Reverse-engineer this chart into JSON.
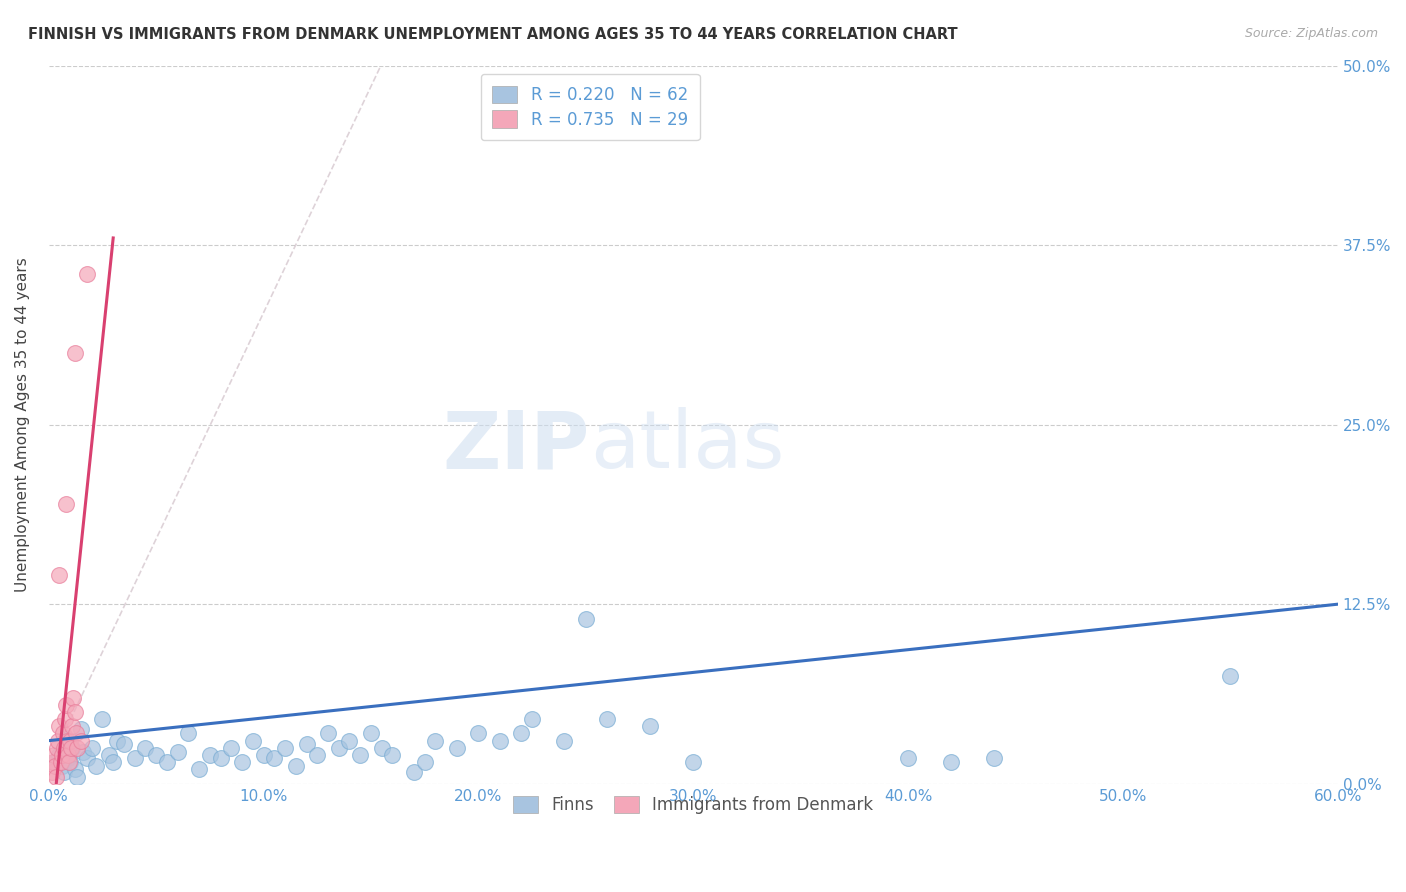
{
  "title": "FINNISH VS IMMIGRANTS FROM DENMARK UNEMPLOYMENT AMONG AGES 35 TO 44 YEARS CORRELATION CHART",
  "source": "Source: ZipAtlas.com",
  "ylabel": "Unemployment Among Ages 35 to 44 years",
  "xlabel_vals": [
    0,
    10,
    20,
    30,
    40,
    50,
    60
  ],
  "ylabel_vals": [
    0,
    12.5,
    25,
    37.5,
    50
  ],
  "xlim": [
    0,
    60
  ],
  "ylim": [
    0,
    50
  ],
  "watermark_zip": "ZIP",
  "watermark_atlas": "atlas",
  "finn_color": "#a8c4e0",
  "finn_edge_color": "#7aadd4",
  "dk_color": "#f4a7b9",
  "dk_edge_color": "#e87d9a",
  "finn_line_color": "#3a6fbf",
  "dk_line_color": "#d94070",
  "dash_line_color": "#d0c0c8",
  "tick_color": "#5b9bd5",
  "legend_label_color": "#5b9bd5",
  "finn_line": [
    [
      0,
      3.0
    ],
    [
      60,
      12.5
    ]
  ],
  "dk_line": [
    [
      0,
      -5.0
    ],
    [
      3.0,
      38.0
    ]
  ],
  "dash_line": [
    [
      -2,
      -5
    ],
    [
      18,
      58
    ]
  ],
  "finn_scatter": [
    [
      0.3,
      1.5
    ],
    [
      0.5,
      2.0
    ],
    [
      0.6,
      1.2
    ],
    [
      0.7,
      0.8
    ],
    [
      0.8,
      3.2
    ],
    [
      0.9,
      1.8
    ],
    [
      1.0,
      1.5
    ],
    [
      1.1,
      2.5
    ],
    [
      1.2,
      1.0
    ],
    [
      1.3,
      0.5
    ],
    [
      1.5,
      3.8
    ],
    [
      1.6,
      2.2
    ],
    [
      1.8,
      1.8
    ],
    [
      2.0,
      2.5
    ],
    [
      2.2,
      1.2
    ],
    [
      2.5,
      4.5
    ],
    [
      2.8,
      2.0
    ],
    [
      3.0,
      1.5
    ],
    [
      3.2,
      3.0
    ],
    [
      3.5,
      2.8
    ],
    [
      4.0,
      1.8
    ],
    [
      4.5,
      2.5
    ],
    [
      5.0,
      2.0
    ],
    [
      5.5,
      1.5
    ],
    [
      6.0,
      2.2
    ],
    [
      6.5,
      3.5
    ],
    [
      7.0,
      1.0
    ],
    [
      7.5,
      2.0
    ],
    [
      8.0,
      1.8
    ],
    [
      8.5,
      2.5
    ],
    [
      9.0,
      1.5
    ],
    [
      9.5,
      3.0
    ],
    [
      10.0,
      2.0
    ],
    [
      10.5,
      1.8
    ],
    [
      11.0,
      2.5
    ],
    [
      11.5,
      1.2
    ],
    [
      12.0,
      2.8
    ],
    [
      12.5,
      2.0
    ],
    [
      13.0,
      3.5
    ],
    [
      13.5,
      2.5
    ],
    [
      14.0,
      3.0
    ],
    [
      14.5,
      2.0
    ],
    [
      15.0,
      3.5
    ],
    [
      15.5,
      2.5
    ],
    [
      16.0,
      2.0
    ],
    [
      17.0,
      0.8
    ],
    [
      17.5,
      1.5
    ],
    [
      18.0,
      3.0
    ],
    [
      19.0,
      2.5
    ],
    [
      20.0,
      3.5
    ],
    [
      21.0,
      3.0
    ],
    [
      22.0,
      3.5
    ],
    [
      22.5,
      4.5
    ],
    [
      24.0,
      3.0
    ],
    [
      25.0,
      11.5
    ],
    [
      26.0,
      4.5
    ],
    [
      28.0,
      4.0
    ],
    [
      30.0,
      1.5
    ],
    [
      40.0,
      1.8
    ],
    [
      42.0,
      1.5
    ],
    [
      44.0,
      1.8
    ],
    [
      55.0,
      7.5
    ]
  ],
  "dk_scatter": [
    [
      0.15,
      0.8
    ],
    [
      0.2,
      1.5
    ],
    [
      0.25,
      2.0
    ],
    [
      0.3,
      1.2
    ],
    [
      0.35,
      0.5
    ],
    [
      0.4,
      2.5
    ],
    [
      0.45,
      3.0
    ],
    [
      0.5,
      4.0
    ],
    [
      0.55,
      1.5
    ],
    [
      0.6,
      2.0
    ],
    [
      0.65,
      3.5
    ],
    [
      0.7,
      2.5
    ],
    [
      0.75,
      4.5
    ],
    [
      0.8,
      5.5
    ],
    [
      0.85,
      3.0
    ],
    [
      0.9,
      2.0
    ],
    [
      0.95,
      1.5
    ],
    [
      1.0,
      3.0
    ],
    [
      1.05,
      2.5
    ],
    [
      1.1,
      4.0
    ],
    [
      1.15,
      6.0
    ],
    [
      1.2,
      5.0
    ],
    [
      1.25,
      3.5
    ],
    [
      1.3,
      2.5
    ],
    [
      1.5,
      3.0
    ],
    [
      0.5,
      14.5
    ],
    [
      0.8,
      19.5
    ],
    [
      1.2,
      30.0
    ],
    [
      1.8,
      35.5
    ]
  ]
}
